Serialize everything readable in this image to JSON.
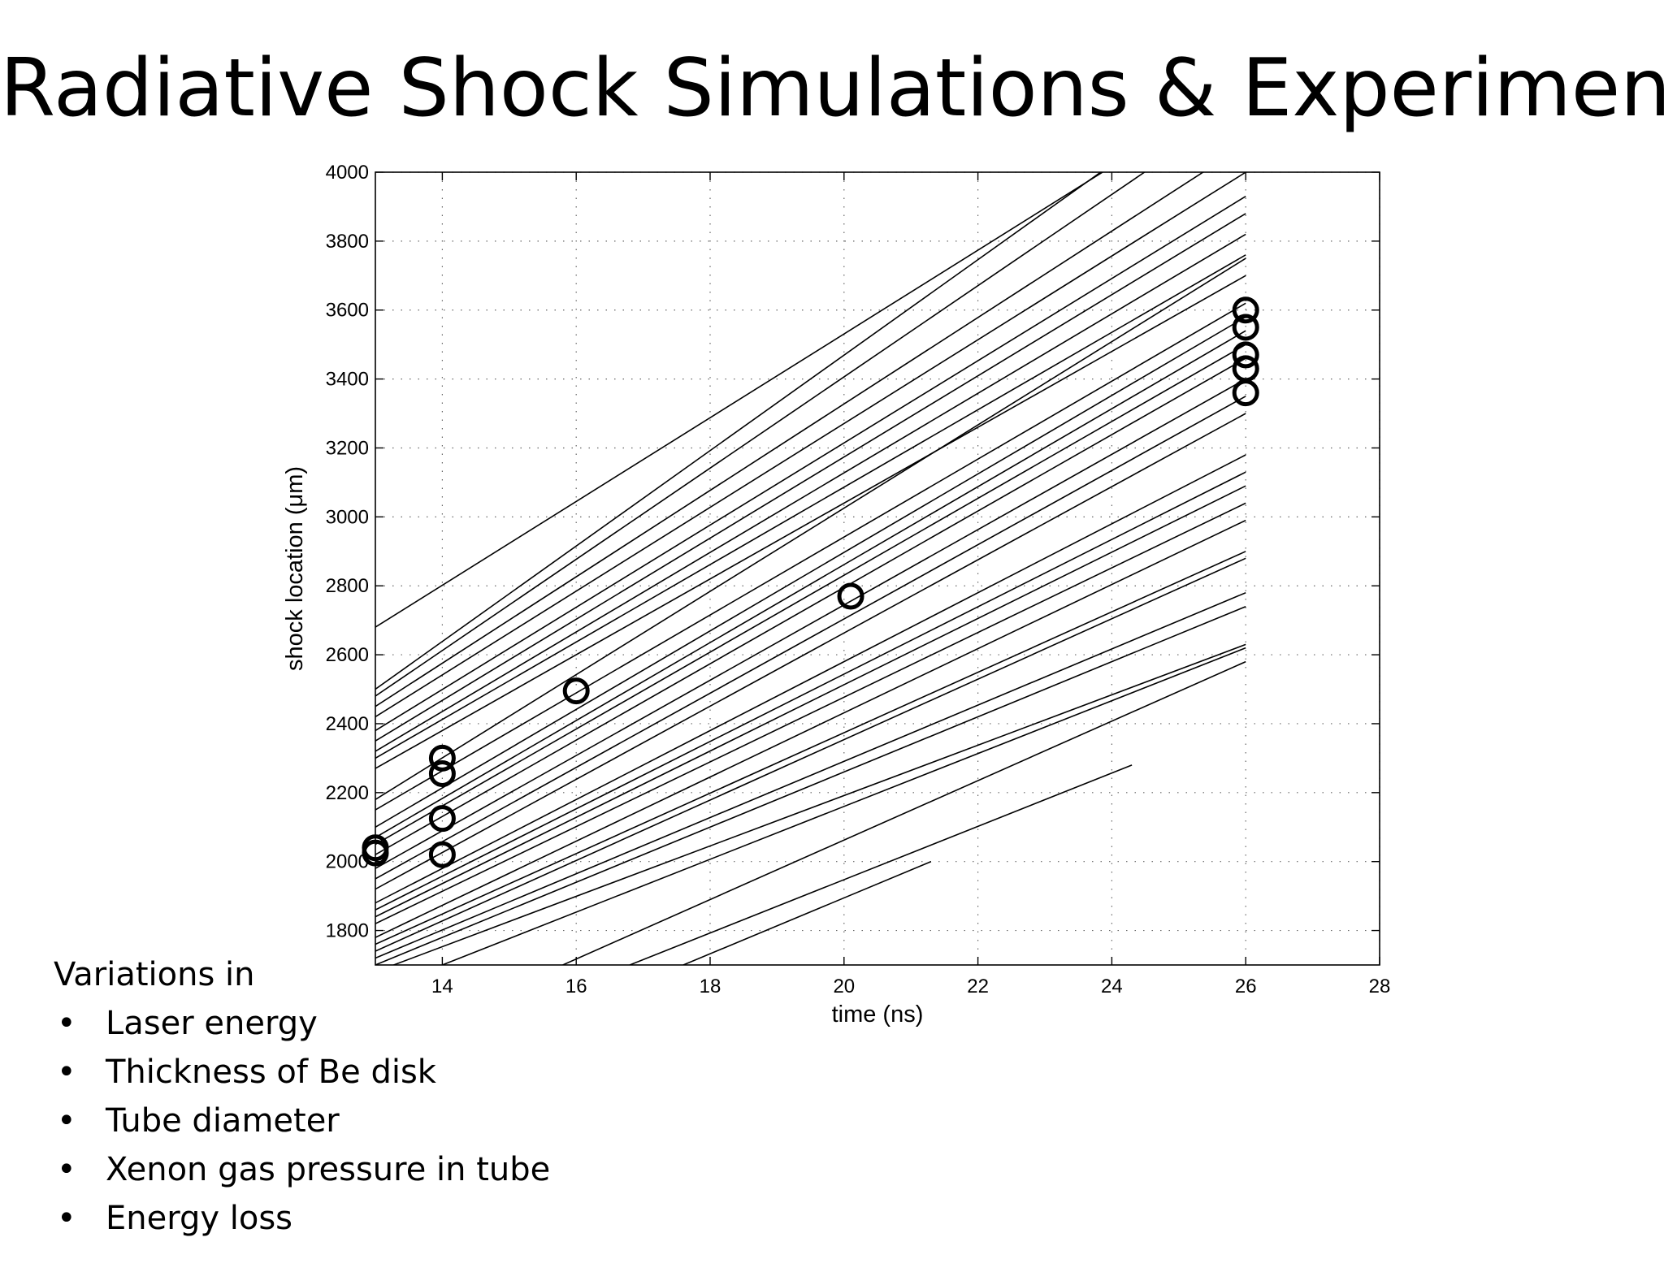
{
  "slide": {
    "title": "Radiative Shock Simulations & Experiments",
    "notes_heading": "Variations in",
    "notes": [
      "Laser energy",
      "Thickness of Be disk",
      "Tube diameter",
      "Xenon gas pressure in tube",
      "Energy loss"
    ]
  },
  "chart_data": {
    "type": "line",
    "xlabel": "time (ns)",
    "ylabel": "shock location (μm)",
    "xlim": [
      13,
      28
    ],
    "ylim": [
      1700,
      4000
    ],
    "xticks": [
      14,
      16,
      18,
      20,
      22,
      24,
      26,
      28
    ],
    "yticks": [
      1800,
      2000,
      2200,
      2400,
      2600,
      2800,
      3000,
      3200,
      3400,
      3600,
      3800,
      4000
    ],
    "grid": true,
    "line_color": "#000000",
    "simulation_lines": [
      {
        "x": [
          13,
          26
        ],
        "y": [
          2680,
          4260
        ]
      },
      {
        "x": [
          13,
          26
        ],
        "y": [
          2500,
          4300
        ]
      },
      {
        "x": [
          13,
          26
        ],
        "y": [
          2480,
          4200
        ]
      },
      {
        "x": [
          13,
          26
        ],
        "y": [
          2450,
          4080
        ]
      },
      {
        "x": [
          13,
          26
        ],
        "y": [
          2420,
          4000
        ]
      },
      {
        "x": [
          13,
          26
        ],
        "y": [
          2380,
          3930
        ]
      },
      {
        "x": [
          13,
          26
        ],
        "y": [
          2350,
          3880
        ]
      },
      {
        "x": [
          13,
          26
        ],
        "y": [
          2320,
          3820
        ]
      },
      {
        "x": [
          13,
          26
        ],
        "y": [
          2300,
          3760
        ]
      },
      {
        "x": [
          13,
          26
        ],
        "y": [
          2270,
          3700
        ]
      },
      {
        "x": [
          13,
          26
        ],
        "y": [
          2180,
          3750
        ]
      },
      {
        "x": [
          13,
          26
        ],
        "y": [
          2150,
          3620
        ]
      },
      {
        "x": [
          13,
          26
        ],
        "y": [
          2100,
          3580
        ]
      },
      {
        "x": [
          13,
          26
        ],
        "y": [
          2070,
          3540
        ]
      },
      {
        "x": [
          13,
          26
        ],
        "y": [
          2050,
          3500
        ]
      },
      {
        "x": [
          13,
          26
        ],
        "y": [
          2020,
          3460
        ]
      },
      {
        "x": [
          13,
          26
        ],
        "y": [
          1980,
          3400
        ]
      },
      {
        "x": [
          13,
          26
        ],
        "y": [
          1950,
          3350
        ]
      },
      {
        "x": [
          13,
          26
        ],
        "y": [
          1920,
          3300
        ]
      },
      {
        "x": [
          13,
          26
        ],
        "y": [
          1880,
          3180
        ]
      },
      {
        "x": [
          13,
          26
        ],
        "y": [
          1860,
          3130
        ]
      },
      {
        "x": [
          13,
          26
        ],
        "y": [
          1840,
          3090
        ]
      },
      {
        "x": [
          13,
          26
        ],
        "y": [
          1820,
          3040
        ]
      },
      {
        "x": [
          13,
          26
        ],
        "y": [
          1780,
          2990
        ]
      },
      {
        "x": [
          13,
          26
        ],
        "y": [
          1760,
          2900
        ]
      },
      {
        "x": [
          13,
          26
        ],
        "y": [
          1740,
          2880
        ]
      },
      {
        "x": [
          13,
          26
        ],
        "y": [
          1720,
          2780
        ]
      },
      {
        "x": [
          13,
          26
        ],
        "y": [
          1700,
          2740
        ]
      },
      {
        "x": [
          13,
          26
        ],
        "y": [
          1680,
          2630
        ]
      },
      {
        "x": [
          14,
          26
        ],
        "y": [
          1700,
          2620
        ]
      },
      {
        "x": [
          15.8,
          26
        ],
        "y": [
          1700,
          2580
        ]
      },
      {
        "x": [
          16.8,
          24.3
        ],
        "y": [
          1700,
          2280
        ]
      },
      {
        "x": [
          17.6,
          21.3
        ],
        "y": [
          1700,
          2000
        ]
      }
    ],
    "experiment_points": [
      {
        "x": 13.0,
        "y": 2040
      },
      {
        "x": 13.0,
        "y": 2025
      },
      {
        "x": 14.0,
        "y": 2300
      },
      {
        "x": 14.0,
        "y": 2255
      },
      {
        "x": 14.0,
        "y": 2125
      },
      {
        "x": 14.0,
        "y": 2020
      },
      {
        "x": 16.0,
        "y": 2495
      },
      {
        "x": 20.1,
        "y": 2770
      },
      {
        "x": 26.0,
        "y": 3600
      },
      {
        "x": 26.0,
        "y": 3550
      },
      {
        "x": 26.0,
        "y": 3470
      },
      {
        "x": 26.0,
        "y": 3430
      },
      {
        "x": 26.0,
        "y": 3360
      }
    ]
  }
}
